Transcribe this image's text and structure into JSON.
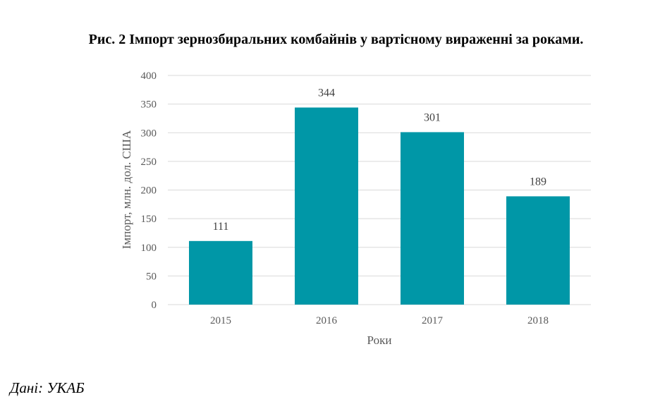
{
  "figure": {
    "title": "Рис. 2 Імпорт зернозбиральних комбайнів у вартісному вираженні за роками.",
    "source": "Дані: УКАБ"
  },
  "colors": {
    "bar": "#0097A7",
    "grid": "#D9D9D9",
    "tick_text": "#595959",
    "label_text": "#404040"
  },
  "chart_data": {
    "type": "bar",
    "title": "",
    "categories": [
      "2015",
      "2016",
      "2017",
      "2018"
    ],
    "values": [
      111,
      344,
      301,
      189
    ],
    "xlabel": "Роки",
    "ylabel": "Імпорт, млн. дол. США",
    "ylim": [
      0,
      400
    ],
    "yticks": [
      0,
      50,
      100,
      150,
      200,
      250,
      300,
      350,
      400
    ],
    "data_labels": true,
    "grid": true,
    "legend": "none"
  }
}
